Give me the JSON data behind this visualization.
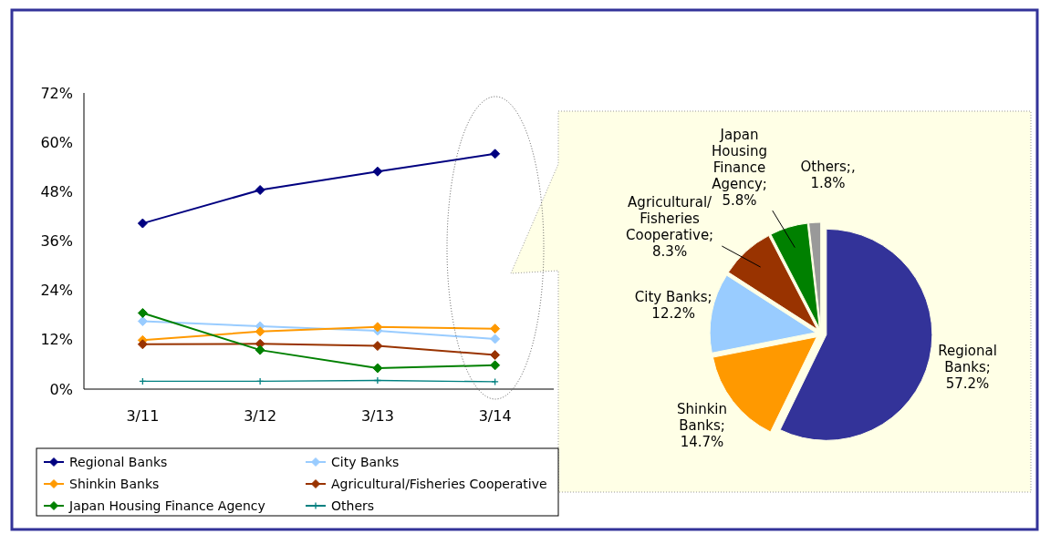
{
  "chart_data": [
    {
      "type": "line",
      "categories": [
        "3/11",
        "3/12",
        "3/13",
        "3/14"
      ],
      "ylim": [
        0,
        72
      ],
      "yticks": [
        {
          "value": 0,
          "label": "0%"
        },
        {
          "value": 12,
          "label": "12%"
        },
        {
          "value": 24,
          "label": "24%"
        },
        {
          "value": 36,
          "label": "36%"
        },
        {
          "value": 48,
          "label": "48%"
        },
        {
          "value": 60,
          "label": "60%"
        },
        {
          "value": 72,
          "label": "72%"
        }
      ],
      "grid": false,
      "legend": "bottom",
      "marker": "diamond",
      "series": [
        {
          "name": "Regional Banks",
          "color": "#000080",
          "values": [
            40.3,
            48.4,
            52.9,
            57.2
          ]
        },
        {
          "name": "City Banks",
          "color": "#99ccff",
          "values": [
            16.5,
            15.3,
            14.2,
            12.2
          ]
        },
        {
          "name": "Shinkin Banks",
          "color": "#ff9900",
          "values": [
            11.9,
            14.0,
            15.1,
            14.7
          ]
        },
        {
          "name": "Agricultural/Fisheries Cooperative",
          "color": "#993300",
          "values": [
            10.9,
            11.0,
            10.5,
            8.3
          ]
        },
        {
          "name": "Japan Housing Finance Agency",
          "color": "#008000",
          "values": [
            18.5,
            9.5,
            5.1,
            5.8
          ]
        },
        {
          "name": "Others",
          "color": "#008080",
          "marker": "cross",
          "values": [
            1.9,
            1.9,
            2.1,
            1.8
          ]
        }
      ]
    },
    {
      "type": "pie",
      "categories": [
        "Regional Banks",
        "Shinkin Banks",
        "City Banks",
        "Agricultural/Fisheries Cooperative",
        "Japan Housing Finance Agency",
        "Others"
      ],
      "values": [
        57.2,
        14.7,
        12.2,
        8.3,
        5.8,
        1.8
      ],
      "value_labels": [
        "; 57.2%",
        "; 14.7%",
        "; 12.2%",
        "; 8.3%",
        "; 5.8%",
        ";, 1.8%"
      ],
      "colors": [
        "#333399",
        "#ff9900",
        "#99ccff",
        "#993300",
        "#008000",
        "#999999"
      ]
    }
  ]
}
